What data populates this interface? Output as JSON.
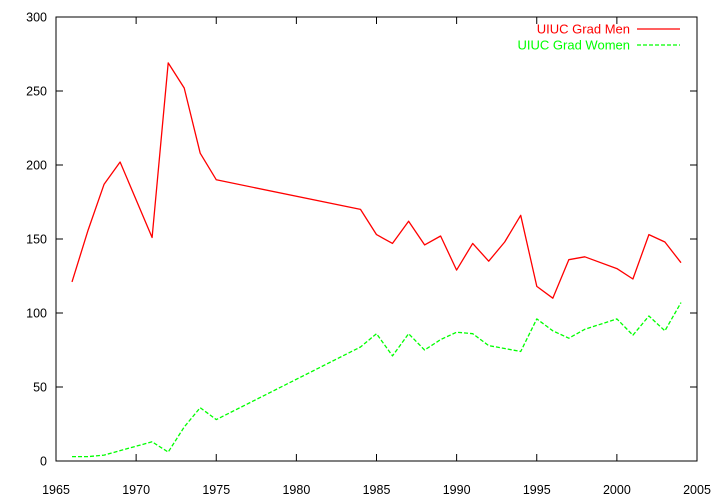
{
  "chart_data": {
    "type": "line",
    "title": "",
    "xlabel": "",
    "ylabel": "",
    "xlim": [
      1965,
      2005
    ],
    "ylim": [
      0,
      300
    ],
    "xticks": [
      1965,
      1970,
      1975,
      1980,
      1985,
      1990,
      1995,
      2000,
      2005
    ],
    "yticks": [
      0,
      50,
      100,
      150,
      200,
      250,
      300
    ],
    "grid": false,
    "legend_position": "top-right",
    "series": [
      {
        "name": "UIUC Grad Men",
        "color": "#ff0000",
        "dash": "solid",
        "points": [
          [
            1966,
            121
          ],
          [
            1967,
            156
          ],
          [
            1968,
            187
          ],
          [
            1969,
            202
          ],
          [
            1971,
            151
          ],
          [
            1972,
            269
          ],
          [
            1973,
            252
          ],
          [
            1974,
            208
          ],
          [
            1975,
            190
          ],
          [
            1984,
            170
          ],
          [
            1985,
            153
          ],
          [
            1986,
            147
          ],
          [
            1987,
            162
          ],
          [
            1988,
            146
          ],
          [
            1989,
            152
          ],
          [
            1990,
            129
          ],
          [
            1991,
            147
          ],
          [
            1992,
            135
          ],
          [
            1993,
            148
          ],
          [
            1994,
            166
          ],
          [
            1995,
            118
          ],
          [
            1996,
            110
          ],
          [
            1997,
            136
          ],
          [
            1998,
            138
          ],
          [
            2000,
            130
          ],
          [
            2001,
            123
          ],
          [
            2002,
            153
          ],
          [
            2003,
            148
          ],
          [
            2004,
            134
          ]
        ]
      },
      {
        "name": "UIUC Grad Women",
        "color": "#00ff00",
        "dash": "dashed",
        "points": [
          [
            1966,
            3
          ],
          [
            1967,
            3
          ],
          [
            1968,
            4
          ],
          [
            1969,
            7
          ],
          [
            1971,
            13
          ],
          [
            1972,
            6
          ],
          [
            1973,
            23
          ],
          [
            1974,
            36
          ],
          [
            1975,
            28
          ],
          [
            1984,
            77
          ],
          [
            1985,
            86
          ],
          [
            1986,
            71
          ],
          [
            1987,
            86
          ],
          [
            1988,
            75
          ],
          [
            1989,
            82
          ],
          [
            1990,
            87
          ],
          [
            1991,
            86
          ],
          [
            1992,
            78
          ],
          [
            1993,
            76
          ],
          [
            1994,
            74
          ],
          [
            1995,
            96
          ],
          [
            1996,
            88
          ],
          [
            1997,
            83
          ],
          [
            1998,
            89
          ],
          [
            2000,
            96
          ],
          [
            2001,
            85
          ],
          [
            2002,
            98
          ],
          [
            2003,
            88
          ],
          [
            2004,
            107
          ]
        ]
      }
    ]
  }
}
